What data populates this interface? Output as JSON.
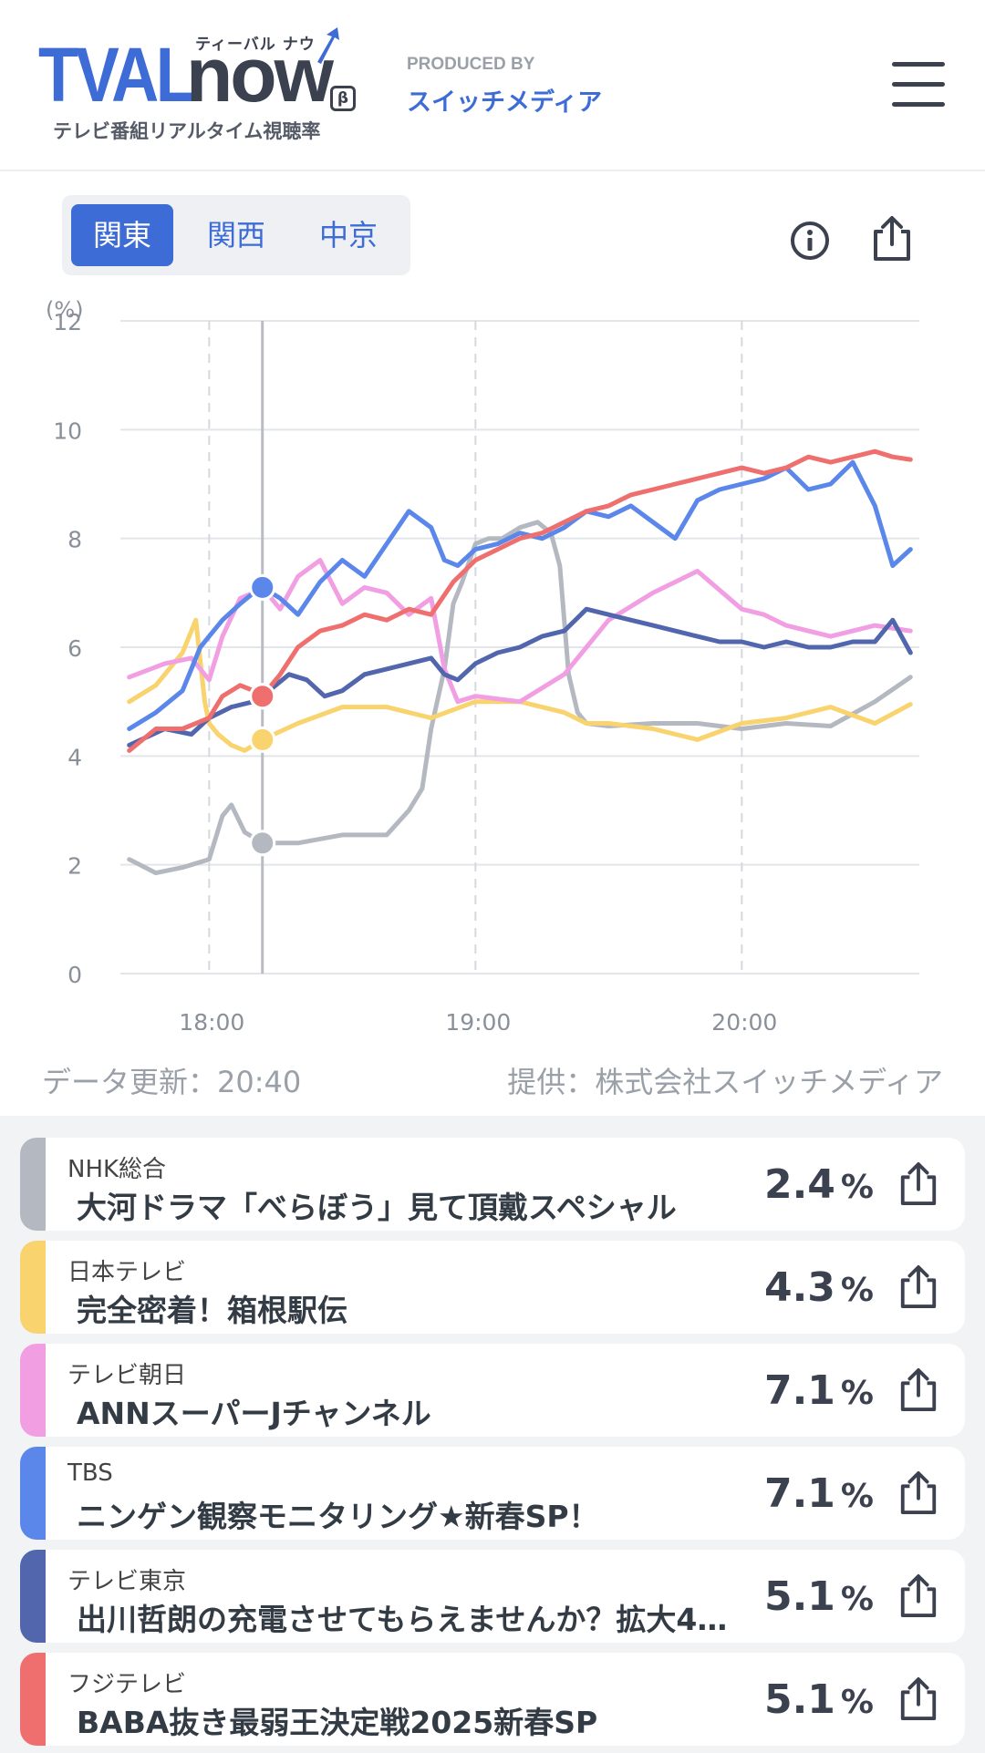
{
  "header": {
    "logo_main": "TVAL",
    "logo_now": "now",
    "logo_kana": "ティーバル ナウ",
    "logo_beta": "β",
    "logo_sub": "テレビ番組リアルタイム視聴率",
    "produced_by_label": "PRODUCED BY",
    "produced_by_name": "スイッチメディア",
    "menu_icon": "hamburger-menu-icon"
  },
  "region_tabs": [
    {
      "label": "関東",
      "active": true
    },
    {
      "label": "関西",
      "active": false
    },
    {
      "label": "中京",
      "active": false
    }
  ],
  "toolbar": {
    "info_icon": "info-circle-icon",
    "share_icon": "share-icon"
  },
  "chart_data": {
    "type": "line",
    "ylabel": "(%)",
    "ylim": [
      0,
      12
    ],
    "yticks": [
      "0",
      "2",
      "4",
      "6",
      "8",
      "10",
      "12"
    ],
    "xticks": [
      "18:00",
      "19:00",
      "20:00"
    ],
    "x_range": [
      "17:40",
      "20:40"
    ],
    "cursor_time": "18:12",
    "grid": true,
    "series": [
      {
        "name": "NHK総合",
        "color": "#b4b9c1",
        "x": [
          "17:42",
          "17:48",
          "17:54",
          "17:58",
          "18:00",
          "18:03",
          "18:05",
          "18:08",
          "18:12",
          "18:20",
          "18:30",
          "18:40",
          "18:45",
          "18:48",
          "18:50",
          "18:53",
          "18:55",
          "18:57",
          "19:00",
          "19:03",
          "19:06",
          "19:10",
          "19:14",
          "19:17",
          "19:19",
          "19:21",
          "19:23",
          "19:25",
          "19:30",
          "19:40",
          "19:50",
          "20:00",
          "20:10",
          "20:20",
          "20:30",
          "20:38"
        ],
        "values": [
          2.1,
          1.85,
          1.95,
          2.05,
          2.1,
          2.9,
          3.1,
          2.6,
          2.4,
          2.4,
          2.55,
          2.55,
          3.0,
          3.4,
          4.5,
          5.6,
          6.8,
          7.2,
          7.9,
          8.0,
          8.0,
          8.2,
          8.3,
          8.1,
          7.5,
          5.5,
          4.8,
          4.6,
          4.55,
          4.6,
          4.6,
          4.5,
          4.6,
          4.55,
          5.0,
          5.45
        ]
      },
      {
        "name": "日本テレビ",
        "color": "#f8d36e",
        "x": [
          "17:42",
          "17:48",
          "17:54",
          "17:57",
          "17:59",
          "18:00",
          "18:02",
          "18:05",
          "18:08",
          "18:12",
          "18:20",
          "18:30",
          "18:40",
          "18:50",
          "19:00",
          "19:10",
          "19:20",
          "19:25",
          "19:30",
          "19:40",
          "19:50",
          "20:00",
          "20:10",
          "20:20",
          "20:30",
          "20:38"
        ],
        "values": [
          5.0,
          5.3,
          5.9,
          6.5,
          5.0,
          4.6,
          4.4,
          4.2,
          4.1,
          4.3,
          4.6,
          4.9,
          4.9,
          4.7,
          5.0,
          5.0,
          4.8,
          4.6,
          4.6,
          4.5,
          4.3,
          4.6,
          4.7,
          4.9,
          4.6,
          4.95
        ]
      },
      {
        "name": "テレビ朝日",
        "color": "#f19ee3",
        "x": [
          "17:42",
          "17:50",
          "17:56",
          "17:58",
          "18:00",
          "18:03",
          "18:07",
          "18:10",
          "18:12",
          "18:16",
          "18:20",
          "18:25",
          "18:30",
          "18:35",
          "18:40",
          "18:45",
          "18:50",
          "18:53",
          "18:56",
          "19:00",
          "19:10",
          "19:20",
          "19:30",
          "19:40",
          "19:50",
          "20:00",
          "20:05",
          "20:10",
          "20:20",
          "20:30",
          "20:38"
        ],
        "values": [
          5.45,
          5.7,
          5.8,
          5.6,
          5.4,
          6.2,
          6.9,
          7.0,
          7.1,
          6.7,
          7.3,
          7.6,
          6.8,
          7.1,
          7.0,
          6.6,
          6.9,
          5.6,
          5.0,
          5.1,
          5.0,
          5.5,
          6.5,
          7.0,
          7.4,
          6.7,
          6.6,
          6.4,
          6.2,
          6.4,
          6.3
        ]
      },
      {
        "name": "TBS",
        "color": "#5b87ea",
        "x": [
          "17:42",
          "17:48",
          "17:54",
          "17:58",
          "18:00",
          "18:03",
          "18:07",
          "18:10",
          "18:12",
          "18:16",
          "18:20",
          "18:25",
          "18:30",
          "18:35",
          "18:40",
          "18:45",
          "18:50",
          "18:53",
          "18:56",
          "19:00",
          "19:05",
          "19:10",
          "19:15",
          "19:20",
          "19:25",
          "19:30",
          "19:35",
          "19:40",
          "19:45",
          "19:50",
          "19:55",
          "20:00",
          "20:05",
          "20:10",
          "20:15",
          "20:20",
          "20:25",
          "20:30",
          "20:34",
          "20:38"
        ],
        "values": [
          4.5,
          4.8,
          5.2,
          6.0,
          6.2,
          6.5,
          6.8,
          7.0,
          7.1,
          6.9,
          6.6,
          7.2,
          7.6,
          7.3,
          7.9,
          8.5,
          8.2,
          7.6,
          7.5,
          7.8,
          7.9,
          8.1,
          8.0,
          8.2,
          8.5,
          8.4,
          8.6,
          8.3,
          8.0,
          8.7,
          8.9,
          9.0,
          9.1,
          9.3,
          8.9,
          9.0,
          9.4,
          8.6,
          7.5,
          7.8
        ]
      },
      {
        "name": "テレビ東京",
        "color": "#5266ad",
        "x": [
          "17:42",
          "17:50",
          "17:56",
          "18:00",
          "18:05",
          "18:10",
          "18:12",
          "18:18",
          "18:22",
          "18:26",
          "18:30",
          "18:35",
          "18:40",
          "18:45",
          "18:50",
          "18:53",
          "18:56",
          "19:00",
          "19:05",
          "19:10",
          "19:15",
          "19:20",
          "19:25",
          "19:30",
          "19:35",
          "19:40",
          "19:45",
          "19:50",
          "19:55",
          "20:00",
          "20:05",
          "20:10",
          "20:15",
          "20:20",
          "20:25",
          "20:30",
          "20:34",
          "20:38"
        ],
        "values": [
          4.2,
          4.5,
          4.4,
          4.7,
          4.9,
          5.0,
          5.1,
          5.5,
          5.4,
          5.1,
          5.2,
          5.5,
          5.6,
          5.7,
          5.8,
          5.5,
          5.4,
          5.7,
          5.9,
          6.0,
          6.2,
          6.3,
          6.7,
          6.6,
          6.5,
          6.4,
          6.3,
          6.2,
          6.1,
          6.1,
          6.0,
          6.1,
          6.0,
          6.0,
          6.1,
          6.1,
          6.5,
          5.9
        ]
      },
      {
        "name": "フジテレビ",
        "color": "#ef6f6f",
        "x": [
          "17:42",
          "17:48",
          "17:54",
          "18:00",
          "18:03",
          "18:07",
          "18:10",
          "18:12",
          "18:16",
          "18:20",
          "18:25",
          "18:30",
          "18:35",
          "18:40",
          "18:45",
          "18:50",
          "18:55",
          "19:00",
          "19:05",
          "19:10",
          "19:15",
          "19:20",
          "19:25",
          "19:30",
          "19:35",
          "19:40",
          "19:45",
          "19:50",
          "19:55",
          "20:00",
          "20:05",
          "20:10",
          "20:15",
          "20:20",
          "20:25",
          "20:30",
          "20:34",
          "20:38"
        ],
        "values": [
          4.1,
          4.5,
          4.5,
          4.7,
          5.1,
          5.3,
          5.2,
          5.1,
          5.5,
          6.0,
          6.3,
          6.4,
          6.6,
          6.5,
          6.7,
          6.6,
          7.2,
          7.6,
          7.8,
          8.0,
          8.1,
          8.3,
          8.5,
          8.6,
          8.8,
          8.9,
          9.0,
          9.1,
          9.2,
          9.3,
          9.2,
          9.3,
          9.5,
          9.4,
          9.5,
          9.6,
          9.5,
          9.45
        ]
      }
    ]
  },
  "footer": {
    "update": "データ更新：20:40",
    "provider": "提供：株式会社スイッチメディア"
  },
  "programs": [
    {
      "channel": "NHK総合",
      "title": "大河ドラマ「べらぼう」見て頂戴スペシャル",
      "rating": "2.4",
      "unit": "%",
      "color": "#b4b9c1"
    },
    {
      "channel": "日本テレビ",
      "title": "完全密着！箱根駅伝",
      "rating": "4.3",
      "unit": "%",
      "color": "#f8d36e"
    },
    {
      "channel": "テレビ朝日",
      "title": "ANNスーパーJチャンネル",
      "rating": "7.1",
      "unit": "%",
      "color": "#f19ee3"
    },
    {
      "channel": "TBS",
      "title": "ニンゲン観察モニタリング★新春SP！",
      "rating": "7.1",
      "unit": "%",
      "color": "#5b87ea"
    },
    {
      "channel": "テレビ東京",
      "title": "出川哲朗の充電させてもらえませんか？拡大4…",
      "rating": "5.1",
      "unit": "%",
      "color": "#5266ad"
    },
    {
      "channel": "フジテレビ",
      "title": "BABA抜き最弱王決定戦2025新春SP",
      "rating": "5.1",
      "unit": "%",
      "color": "#ef6f6f"
    }
  ]
}
